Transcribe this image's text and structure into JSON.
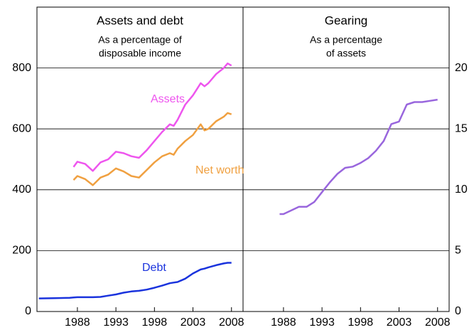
{
  "chart_data": [
    {
      "type": "line",
      "title": "Assets and debt",
      "subtitle": [
        "As a percentage of",
        "disposable income"
      ],
      "x": [
        1983,
        1985,
        1987,
        1987.5,
        1988,
        1989,
        1990,
        1991,
        1992,
        1993,
        1994,
        1995,
        1996,
        1997,
        1998,
        1999,
        2000,
        2000.5,
        2001,
        2002,
        2003,
        2004,
        2004.5,
        2005,
        2006,
        2007,
        2007.5,
        2008
      ],
      "series": [
        {
          "name": "Assets",
          "color": "#ee55ee",
          "values": [
            null,
            null,
            null,
            475,
            492,
            485,
            462,
            490,
            500,
            525,
            520,
            510,
            505,
            530,
            560,
            590,
            615,
            610,
            630,
            680,
            710,
            750,
            740,
            750,
            780,
            800,
            815,
            808
          ]
        },
        {
          "name": "Net worth",
          "color": "#f0a040",
          "values": [
            null,
            null,
            null,
            432,
            445,
            435,
            415,
            440,
            450,
            470,
            460,
            445,
            440,
            465,
            490,
            510,
            520,
            515,
            535,
            560,
            580,
            615,
            595,
            600,
            625,
            640,
            652,
            648
          ]
        },
        {
          "name": "Debt",
          "color": "#1a33dd",
          "values": [
            43,
            44,
            45,
            46,
            47,
            47,
            47,
            48,
            52,
            56,
            62,
            66,
            68,
            72,
            78,
            85,
            93,
            95,
            97,
            108,
            125,
            138,
            141,
            145,
            152,
            158,
            160,
            160
          ]
        }
      ],
      "xlim": [
        1982.75,
        2009.5
      ],
      "xticks": [
        1988,
        1993,
        1998,
        2003,
        2008
      ],
      "ylim": [
        0,
        1000
      ],
      "yticks": [
        0,
        200,
        400,
        600,
        800
      ],
      "y_axis_side": "left",
      "grid": true
    },
    {
      "type": "line",
      "title": "Gearing",
      "subtitle": [
        "As a percentage",
        "of assets"
      ],
      "x": [
        1987.5,
        1988,
        1989,
        1990,
        1991,
        1992,
        1993,
        1994,
        1995,
        1996,
        1997,
        1998,
        1999,
        2000,
        2001,
        2002,
        2003,
        2004,
        2005,
        2006,
        2007,
        2008
      ],
      "series": [
        {
          "color": "#9966dd",
          "values": [
            8.0,
            8.0,
            8.3,
            8.6,
            8.6,
            9.0,
            9.8,
            10.6,
            11.3,
            11.8,
            11.9,
            12.2,
            12.6,
            13.2,
            14.0,
            15.4,
            15.6,
            17.0,
            17.2,
            17.2,
            17.3,
            17.4
          ]
        }
      ],
      "xlim": [
        1982.75,
        2009.5
      ],
      "xticks": [
        1988,
        1993,
        1998,
        2003,
        2008
      ],
      "ylim": [
        0,
        25
      ],
      "yticks": [
        0,
        5,
        10,
        15,
        20
      ],
      "y_axis_side": "right",
      "grid": true
    }
  ]
}
